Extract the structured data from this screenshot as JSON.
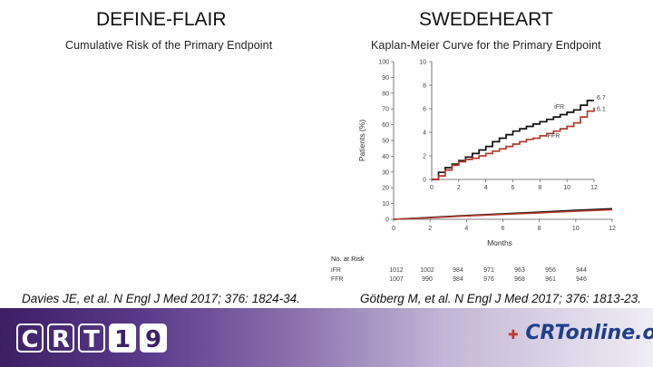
{
  "left_panel": {
    "study_title": "DEFINE-FLAIR",
    "subtitle": "Cumulative Risk of the Primary Endpoint",
    "citation": "Davies JE, et al. N Engl J Med 2017; 376: 1824-34."
  },
  "right_panel": {
    "study_title": "SWEDEHEART",
    "subtitle": "Kaplan-Meier Curve for the Primary Endpoint",
    "citation": "Götberg M, et al. N Engl J Med 2017; 376: 1813-23."
  },
  "footer": {
    "logo_letters": [
      "C",
      "R",
      "T",
      "1",
      "9"
    ],
    "crtonline": "CRTonline.org",
    "crtonline_accent": "✚",
    "background_colors": [
      "#3d1f66",
      "#efedf4"
    ]
  },
  "chart_data": {
    "type": "line",
    "title": "",
    "xlabel": "Months",
    "ylabel": "Patients (%)",
    "xlim": [
      0,
      12
    ],
    "ylim": [
      0,
      100
    ],
    "x_ticks": [
      0,
      2,
      4,
      6,
      8,
      10,
      12
    ],
    "y_ticks": [
      0,
      10,
      20,
      30,
      40,
      50,
      60,
      70,
      80,
      90,
      100
    ],
    "grid": false,
    "series": [
      {
        "name": "iFR",
        "color": "#111111",
        "x": [
          0,
          2,
          4,
          6,
          8,
          10,
          12
        ],
        "y": [
          0,
          1.2,
          2.4,
          3.5,
          4.6,
          5.7,
          6.7
        ]
      },
      {
        "name": "FFR",
        "color": "#b03a2e",
        "x": [
          0,
          2,
          4,
          6,
          8,
          10,
          12
        ],
        "y": [
          0,
          1.0,
          2.1,
          3.1,
          4.1,
          5.1,
          6.1
        ]
      }
    ],
    "inset": {
      "xlim": [
        0,
        12
      ],
      "ylim": [
        0,
        10
      ],
      "x_ticks": [
        0,
        2,
        4,
        6,
        8,
        10,
        12
      ],
      "y_ticks": [
        0,
        2,
        4,
        6,
        8,
        10
      ],
      "series": [
        {
          "name": "iFR",
          "label": "iFR",
          "end_label": "6.7",
          "color": "#111111",
          "x": [
            0,
            0.5,
            1,
            1.5,
            2,
            2.5,
            3,
            3.5,
            4,
            4.5,
            5,
            5.5,
            6,
            6.5,
            7,
            7.5,
            8,
            8.5,
            9,
            9.5,
            10,
            10.5,
            11,
            11.5,
            12
          ],
          "y": [
            0,
            0.6,
            1.0,
            1.3,
            1.6,
            1.9,
            2.2,
            2.5,
            2.8,
            3.2,
            3.5,
            3.8,
            4.1,
            4.3,
            4.5,
            4.7,
            4.9,
            5.1,
            5.3,
            5.5,
            5.7,
            5.9,
            6.3,
            6.7,
            6.7
          ]
        },
        {
          "name": "FFR",
          "label": "FFR",
          "end_label": "6.1",
          "color": "#b03a2e",
          "x": [
            0,
            0.5,
            1,
            1.5,
            2,
            2.5,
            3,
            3.5,
            4,
            4.5,
            5,
            5.5,
            6,
            6.5,
            7,
            7.5,
            8,
            8.5,
            9,
            9.5,
            10,
            10.5,
            11,
            11.5,
            12
          ],
          "y": [
            0,
            0.3,
            0.8,
            1.2,
            1.5,
            1.7,
            1.8,
            2.0,
            2.2,
            2.4,
            2.6,
            2.8,
            3.0,
            3.2,
            3.4,
            3.5,
            3.7,
            3.9,
            4.1,
            4.3,
            4.5,
            4.8,
            5.3,
            5.8,
            6.1
          ]
        }
      ]
    },
    "risk_table": {
      "title": "No. at Risk",
      "rows": [
        {
          "label": "iFR",
          "values": [
            1012,
            1002,
            984,
            971,
            963,
            956,
            944
          ]
        },
        {
          "label": "FFR",
          "values": [
            1007,
            990,
            984,
            976,
            968,
            961,
            946
          ]
        }
      ]
    }
  }
}
